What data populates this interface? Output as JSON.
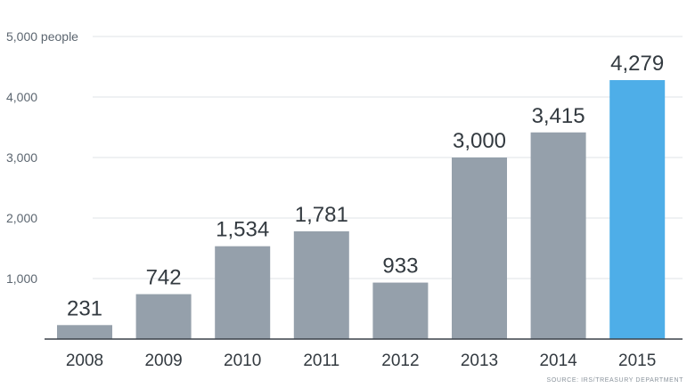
{
  "chart_data": {
    "type": "bar",
    "title": "",
    "xlabel": "",
    "ylabel": "",
    "unit_label": "people",
    "categories": [
      "2008",
      "2009",
      "2010",
      "2011",
      "2012",
      "2013",
      "2014",
      "2015"
    ],
    "values": [
      231,
      742,
      1534,
      1781,
      933,
      3000,
      3415,
      4279
    ],
    "data_labels": [
      "231",
      "742",
      "1,534",
      "1,781",
      "933",
      "3,000",
      "3,415",
      "4,279"
    ],
    "ylim": [
      0,
      5000
    ],
    "yticks": [
      1000,
      2000,
      3000,
      4000,
      5000
    ],
    "ytick_labels": [
      "1,000",
      "2,000",
      "3,000",
      "4,000",
      "5,000 people"
    ],
    "grid": true,
    "legend": "none",
    "colors": {
      "bar": "#95a0ab",
      "highlight_bar": "#4eaee8",
      "grid": "#dfe3e7",
      "axis": "#3a4148"
    },
    "highlight_index": 7,
    "source": "SOURCE: IRS/TREASURY DEPARTMENT"
  }
}
